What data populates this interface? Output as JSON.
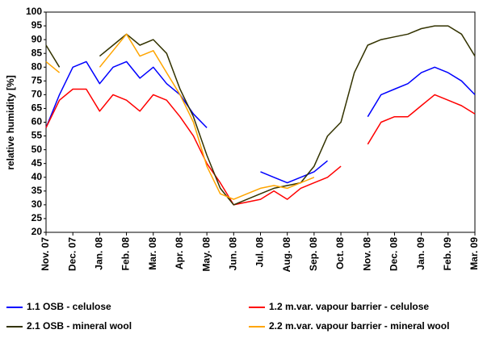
{
  "chart_data": {
    "type": "line",
    "y_label": "relative humidity [%]",
    "categories": [
      "Nov. 07",
      null,
      "Dec. 07",
      null,
      "Jan. 08",
      null,
      "Feb. 08",
      null,
      "Mar. 08",
      null,
      "Apr. 08",
      null,
      "May. 08",
      null,
      "Jun. 08",
      null,
      "Jul. 08",
      null,
      "Aug. 08",
      null,
      "Sep. 08",
      null,
      "Oct. 08",
      null,
      "Nov. 08",
      null,
      "Dec. 08",
      null,
      "Jan. 09",
      null,
      "Feb. 09",
      null,
      "Mar. 09"
    ],
    "series": [
      {
        "name": "1.1 OSB - celulose",
        "color": "#0000ff",
        "values": [
          58,
          70,
          80,
          82,
          74,
          80,
          82,
          76,
          80,
          74,
          70,
          63,
          58,
          null,
          null,
          null,
          42,
          40,
          38,
          40,
          42,
          46,
          null,
          null,
          62,
          70,
          72,
          74,
          78,
          80,
          78,
          75,
          70
        ]
      },
      {
        "name": "1.2 m.var. vapour barrier - celulose",
        "color": "#ff0000",
        "values": [
          58,
          68,
          72,
          72,
          64,
          70,
          68,
          64,
          70,
          68,
          62,
          55,
          45,
          38,
          30,
          31,
          32,
          35,
          32,
          36,
          38,
          40,
          44,
          null,
          52,
          60,
          62,
          62,
          66,
          70,
          68,
          66,
          63
        ]
      },
      {
        "name": "2.1 OSB - mineral wool",
        "color": "#333300",
        "values": [
          88,
          80,
          null,
          null,
          84,
          88,
          92,
          88,
          90,
          85,
          72,
          62,
          48,
          36,
          30,
          32,
          34,
          36,
          37,
          38,
          44,
          55,
          60,
          78,
          88,
          90,
          91,
          92,
          94,
          95,
          95,
          92,
          84
        ]
      },
      {
        "name": "2.2 m.var. vapour barrier - mineral wool",
        "color": "#ffa500",
        "values": [
          82,
          78,
          null,
          null,
          80,
          86,
          92,
          84,
          86,
          78,
          70,
          60,
          44,
          34,
          32,
          34,
          36,
          37,
          36,
          38,
          40,
          null,
          null,
          null,
          null,
          null,
          null,
          null,
          null,
          null,
          null,
          null,
          null
        ]
      }
    ],
    "ylim": [
      20,
      100
    ],
    "yticks": [
      20,
      25,
      30,
      35,
      40,
      45,
      50,
      55,
      60,
      65,
      70,
      75,
      80,
      85,
      90,
      95,
      100
    ],
    "grid": false
  }
}
